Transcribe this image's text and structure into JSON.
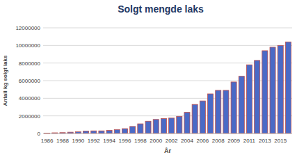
{
  "chart_data": {
    "type": "bar",
    "title": "Solgt mengde laks",
    "x_label": "År",
    "y_label": "Antall kg solgt laks",
    "categories": [
      "1986",
      null,
      "1988",
      null,
      "1990",
      null,
      "1992",
      null,
      "1994",
      null,
      "1996",
      null,
      "1998",
      null,
      "2000",
      null,
      "2002",
      null,
      "2004",
      null,
      "2006",
      null,
      "2008",
      null,
      "2009",
      null,
      "2011",
      null,
      "2013",
      null,
      "2015",
      null
    ],
    "values": [
      50000,
      80000,
      100000,
      150000,
      200000,
      280000,
      300000,
      300000,
      350000,
      450000,
      550000,
      800000,
      1100000,
      1400000,
      1600000,
      1700000,
      1750000,
      1950000,
      2400000,
      3300000,
      3700000,
      4500000,
      4900000,
      4900000,
      5850000,
      6500000,
      7800000,
      8300000,
      9400000,
      9800000,
      10000000,
      10400000
    ],
    "color": "#4a6ac6",
    "ylim": [
      0,
      12000000
    ],
    "yticks": [
      0,
      2000000,
      4000000,
      6000000,
      8000000,
      10000000,
      12000000
    ],
    "grid": true
  }
}
